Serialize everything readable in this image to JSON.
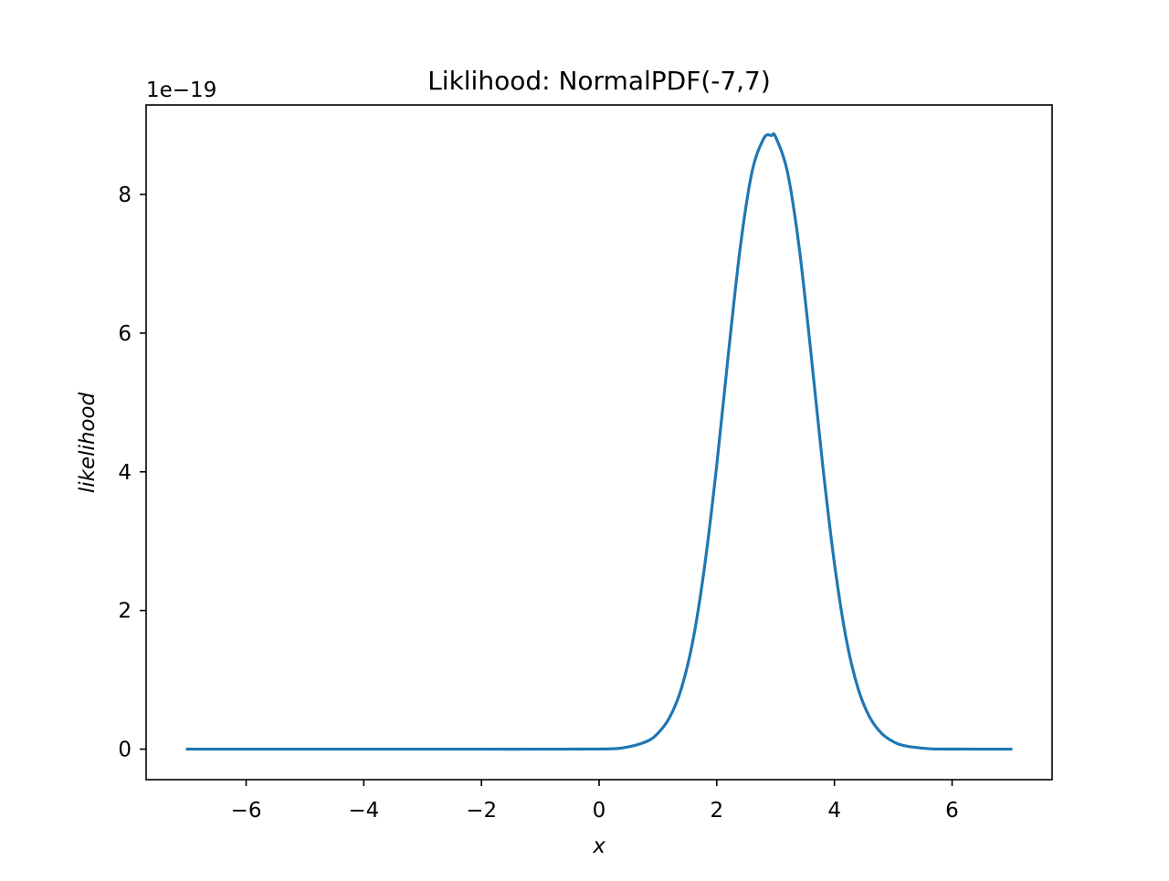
{
  "chart_data": {
    "type": "line",
    "title": "Liklihood: NormalPDF(-7,7)",
    "xlabel": "x",
    "ylabel": "likelihood",
    "y_offset_label": "1e−19",
    "xlim": [
      -7.7,
      7.7
    ],
    "ylim": [
      -0.44,
      9.29
    ],
    "x_ticks": [
      -6,
      -4,
      -2,
      0,
      2,
      4,
      6
    ],
    "x_tick_labels": [
      "−6",
      "−4",
      "−2",
      "0",
      "2",
      "4",
      "6"
    ],
    "y_ticks": [
      0,
      2,
      4,
      6,
      8
    ],
    "y_tick_labels": [
      "0",
      "2",
      "4",
      "6",
      "8"
    ],
    "grid": false,
    "legend": "none",
    "series": [
      {
        "color": "#1f77b4",
        "x": [
          -7.0,
          -6.0,
          -5.0,
          -4.0,
          -3.0,
          -2.0,
          -1.0,
          0.0,
          0.4,
          0.8,
          1.0,
          1.2,
          1.4,
          1.6,
          1.8,
          2.0,
          2.2,
          2.4,
          2.6,
          2.8,
          2.93,
          3.0,
          3.2,
          3.4,
          3.6,
          3.8,
          4.0,
          4.2,
          4.4,
          4.6,
          4.8,
          5.0,
          5.2,
          5.6,
          6.0,
          7.0
        ],
        "y": [
          0.0,
          0.0,
          0.0,
          0.0,
          0.0,
          0.0,
          0.0,
          0.002,
          0.018,
          0.108,
          0.23,
          0.46,
          0.88,
          1.59,
          2.68,
          4.1,
          5.72,
          7.24,
          8.33,
          8.81,
          8.85,
          8.83,
          8.33,
          7.24,
          5.72,
          4.1,
          2.68,
          1.59,
          0.88,
          0.46,
          0.23,
          0.108,
          0.048,
          0.007,
          0.0007,
          0.0
        ]
      }
    ]
  }
}
